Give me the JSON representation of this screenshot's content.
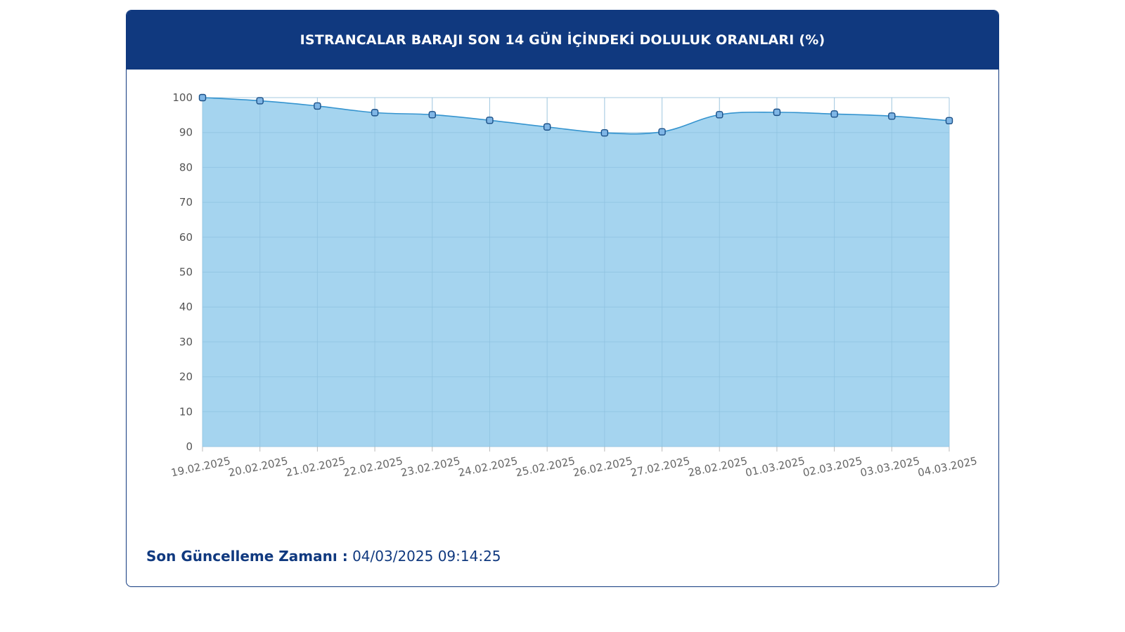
{
  "header": {
    "title": "ISTRANCALAR BARAJI SON 14 GÜN İÇİNDEKİ DOLULUK ORANLARI (%)"
  },
  "footer": {
    "label": "Son Güncelleme Zamanı :",
    "value": "04/03/2025 09:14:25"
  },
  "colors": {
    "header_bg": "#10397f",
    "area_fill": "#9dd0ee",
    "line": "#3594cf",
    "marker_fill": "#7fb6e6",
    "marker_stroke": "#1b4f86",
    "grid": "#c9d9e6"
  },
  "chart_data": {
    "type": "area",
    "title": "ISTRANCALAR BARAJI SON 14 GÜN İÇİNDEKİ DOLULUK ORANLARI (%)",
    "xlabel": "",
    "ylabel": "",
    "categories": [
      "19.02.2025",
      "20.02.2025",
      "21.02.2025",
      "22.02.2025",
      "23.02.2025",
      "24.02.2025",
      "25.02.2025",
      "26.02.2025",
      "27.02.2025",
      "28.02.2025",
      "01.03.2025",
      "02.03.2025",
      "03.03.2025",
      "04.03.2025"
    ],
    "series": [
      {
        "values": [
          100,
          99.1,
          97.6,
          95.7,
          95.1,
          93.5,
          91.6,
          89.9,
          90.2,
          95.1,
          95.8,
          95.3,
          94.7,
          93.4
        ]
      }
    ],
    "ylim": [
      0,
      100
    ],
    "yticks": [
      0,
      10,
      20,
      30,
      40,
      50,
      60,
      70,
      80,
      90,
      100
    ],
    "grid": true,
    "legend": "none"
  }
}
